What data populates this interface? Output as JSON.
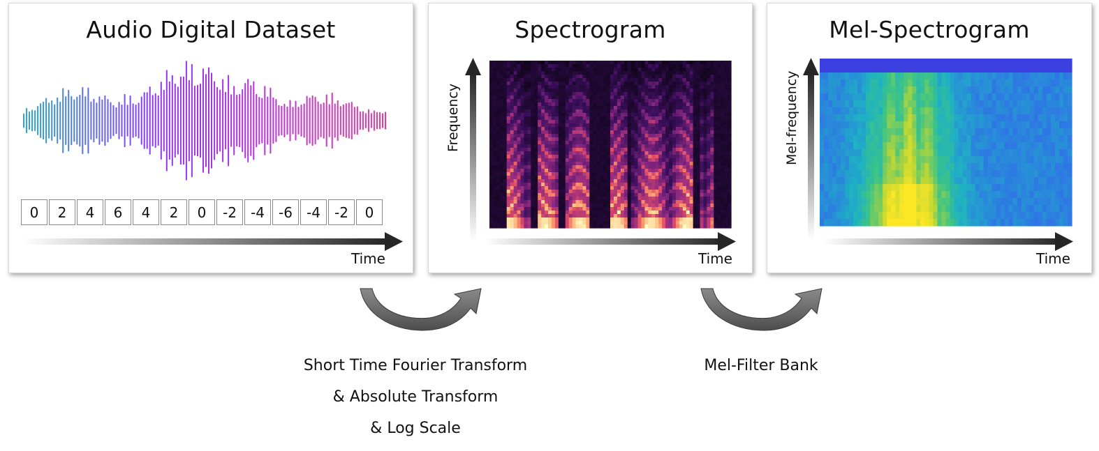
{
  "panels": {
    "audio": {
      "title": "Audio Digital Dataset",
      "values": [
        "0",
        "2",
        "4",
        "6",
        "4",
        "2",
        "0",
        "-2",
        "-4",
        "-6",
        "-4",
        "-2",
        "0"
      ],
      "x_label": "Time",
      "waveform_colors": [
        "#29a8e0",
        "#b32fe6",
        "#e83aa4"
      ]
    },
    "spectrogram": {
      "title": "Spectrogram",
      "y_label": "Frequency",
      "x_label": "Time",
      "colormap": [
        "#0d0416",
        "#3b0f5c",
        "#8c2981",
        "#de4968",
        "#fe9f6d",
        "#fcfdbf"
      ]
    },
    "mel": {
      "title": "Mel-Spectrogram",
      "y_label": "Mel-frequency",
      "x_label": "Time",
      "colormap": [
        "#3e3ae0",
        "#2f74e6",
        "#1fb1c4",
        "#3cc486",
        "#bcd635",
        "#fde725"
      ]
    }
  },
  "transforms": {
    "stft": {
      "lines": [
        "Short Time Fourier Transform",
        "& Absolute Transform",
        "& Log Scale"
      ]
    },
    "mel_filter": {
      "lines": [
        "Mel-Filter Bank"
      ]
    }
  }
}
